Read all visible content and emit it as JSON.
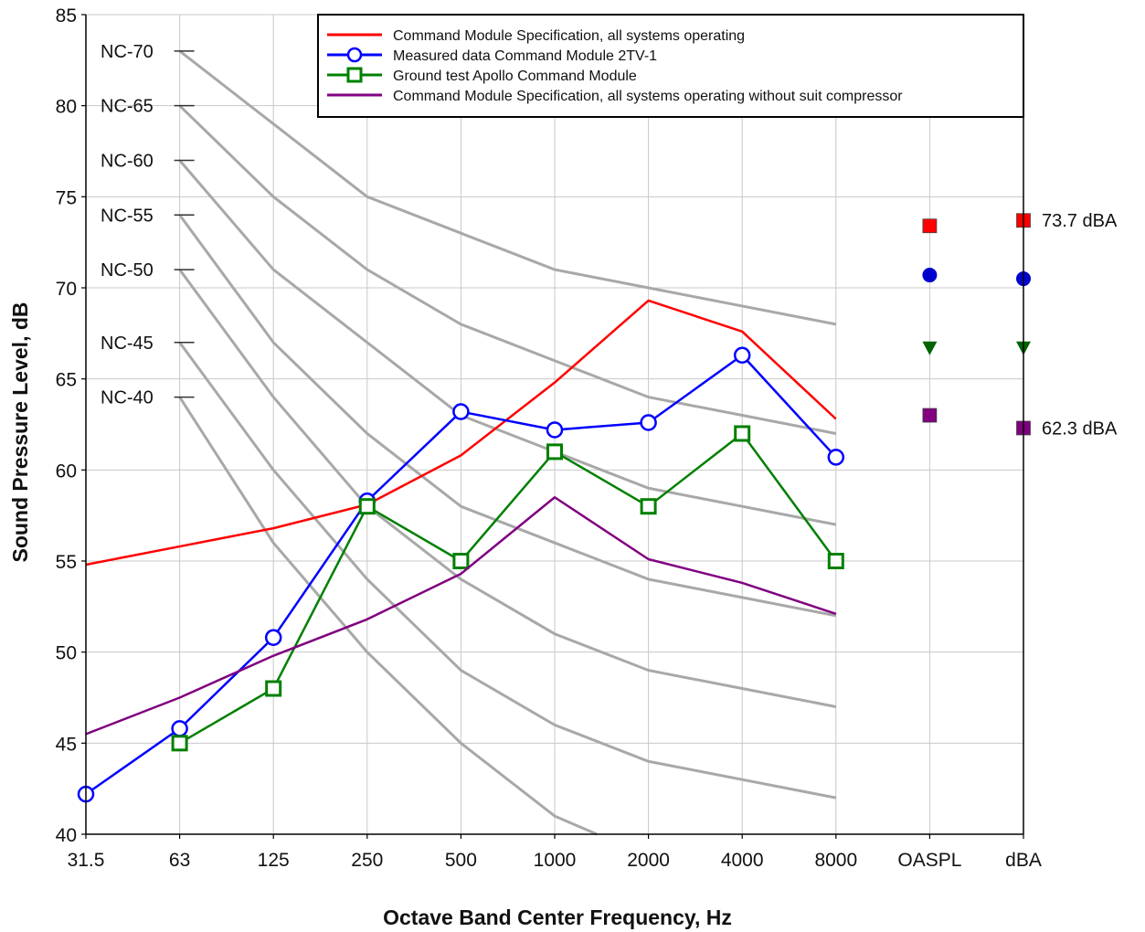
{
  "chart_data": {
    "type": "line",
    "xlabel": "Octave Band Center Frequency, Hz",
    "ylabel": "Sound Pressure Level, dB",
    "ylim": [
      40,
      85
    ],
    "yticks": [
      "40",
      "45",
      "50",
      "55",
      "60",
      "65",
      "70",
      "75",
      "80",
      "85"
    ],
    "categories": [
      "31.5",
      "63",
      "125",
      "250",
      "500",
      "1000",
      "2000",
      "4000",
      "8000",
      "OASPL",
      "dBA"
    ],
    "grid": true,
    "legend_position": "top-right",
    "nc_curves": [
      {
        "label": "NC-70",
        "x": [
          1,
          2,
          3,
          4,
          5,
          6,
          7,
          8
        ],
        "values": [
          83,
          79,
          75,
          73,
          71,
          70,
          69,
          68
        ]
      },
      {
        "label": "NC-65",
        "x": [
          1,
          2,
          3,
          4,
          5,
          6,
          7,
          8
        ],
        "values": [
          80,
          75,
          71,
          68,
          66,
          64,
          63,
          62
        ]
      },
      {
        "label": "NC-60",
        "x": [
          1,
          2,
          3,
          4,
          5,
          6,
          7,
          8
        ],
        "values": [
          77,
          71,
          67,
          63,
          61,
          59,
          58,
          57
        ]
      },
      {
        "label": "NC-55",
        "x": [
          1,
          2,
          3,
          4,
          5,
          6,
          7,
          8
        ],
        "values": [
          74,
          67,
          62,
          58,
          56,
          54,
          53,
          52
        ]
      },
      {
        "label": "NC-50",
        "x": [
          1,
          2,
          3,
          4,
          5,
          6,
          7,
          8
        ],
        "values": [
          71,
          64,
          58,
          54,
          51,
          49,
          48,
          47
        ]
      },
      {
        "label": "NC-45",
        "x": [
          1,
          2,
          3,
          4,
          5,
          6,
          7,
          8
        ],
        "values": [
          67,
          60,
          54,
          49,
          46,
          44,
          43,
          42
        ]
      },
      {
        "label": "NC-40",
        "x": [
          1,
          2,
          3,
          4,
          5,
          5.45
        ],
        "values": [
          64,
          56,
          50,
          45,
          41,
          40
        ]
      }
    ],
    "series": [
      {
        "name": "Command Module Specification, all systems operating",
        "color": "#ff0000",
        "marker": "none",
        "x": [
          0,
          1,
          2,
          3,
          4,
          5,
          6,
          7,
          8
        ],
        "values": [
          54.8,
          55.8,
          56.8,
          58.1,
          60.8,
          64.8,
          69.3,
          67.6,
          62.8
        ]
      },
      {
        "name": "Measured data Command Module 2TV-1",
        "color": "#0000ff",
        "marker": "open-circle",
        "x": [
          0,
          1,
          2,
          3,
          4,
          5,
          6,
          7,
          8
        ],
        "values": [
          42.2,
          45.8,
          50.8,
          58.3,
          63.2,
          62.2,
          62.6,
          66.3,
          60.7
        ]
      },
      {
        "name": "Ground test Apollo Command Module",
        "color": "#008000",
        "marker": "open-square",
        "x": [
          1,
          2,
          3,
          4,
          5,
          6,
          7,
          8
        ],
        "values": [
          45,
          48,
          58,
          55,
          61,
          58,
          62,
          55
        ]
      },
      {
        "name": "Command Module Specification, all systems operating without suit compressor",
        "color": "#800080",
        "marker": "none",
        "x": [
          0,
          1,
          2,
          3,
          4,
          5,
          6,
          7,
          8
        ],
        "values": [
          45.5,
          47.5,
          49.8,
          51.8,
          54.3,
          58.5,
          55.1,
          53.8,
          52.1
        ]
      }
    ],
    "summary_points": [
      {
        "x": 9,
        "value": 73.4,
        "color": "#ff0000",
        "marker": "square"
      },
      {
        "x": 9,
        "value": 70.7,
        "color": "#0000cc",
        "marker": "circle"
      },
      {
        "x": 9,
        "value": 66.7,
        "color": "#006400",
        "marker": "triangle-down"
      },
      {
        "x": 9,
        "value": 63.0,
        "color": "#800080",
        "marker": "square"
      },
      {
        "x": 10,
        "value": 73.7,
        "color": "#ff0000",
        "marker": "square",
        "label": "73.7 dBA"
      },
      {
        "x": 10,
        "value": 70.5,
        "color": "#0000cc",
        "marker": "circle"
      },
      {
        "x": 10,
        "value": 66.7,
        "color": "#006400",
        "marker": "triangle-down"
      },
      {
        "x": 10,
        "value": 62.3,
        "color": "#800080",
        "marker": "square",
        "label": "62.3 dBA"
      }
    ]
  }
}
